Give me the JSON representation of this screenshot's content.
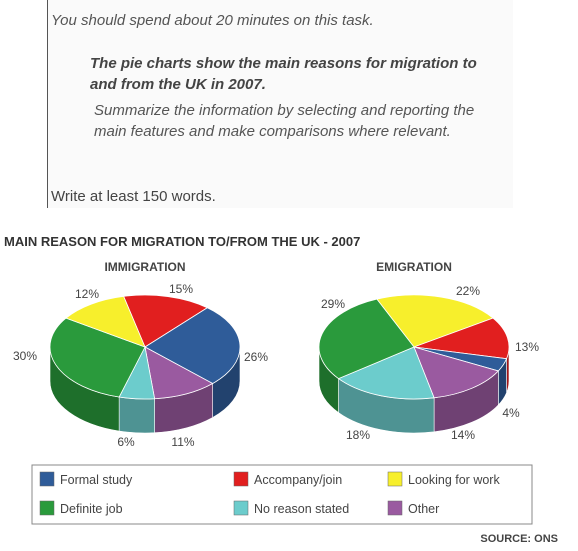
{
  "task": {
    "intro": "You should spend about 20 minutes on this task.",
    "title": "The pie charts show the main reasons for migration to and from the UK in 2007.",
    "instructions": "Summarize the information by selecting and reporting the main features and make comparisons where relevant.",
    "word_count": "Write at least 150 words."
  },
  "chart_data": {
    "type": "pie",
    "title": "MAIN REASON FOR MIGRATION TO/FROM THE UK - 2007",
    "source": "SOURCE: ONS",
    "legend_position": "bottom",
    "categories": [
      "Formal study",
      "Accompany/join",
      "Looking for work",
      "Definite job",
      "No reason stated",
      "Other"
    ],
    "colors": {
      "Formal study": "#2f5c99",
      "Accompany/join": "#e11f1f",
      "Looking for work": "#f7ef2c",
      "Definite job": "#2a9a3c",
      "No reason stated": "#6ccccc",
      "Other": "#9a5aa0"
    },
    "pies": [
      {
        "name": "IMMIGRATION",
        "slices": [
          {
            "label": "Accompany/join",
            "value": 15,
            "text": "15%"
          },
          {
            "label": "Formal study",
            "value": 26,
            "text": "26%"
          },
          {
            "label": "Other",
            "value": 11,
            "text": "11%"
          },
          {
            "label": "No reason stated",
            "value": 6,
            "text": "6%"
          },
          {
            "label": "Definite job",
            "value": 30,
            "text": "30%"
          },
          {
            "label": "Looking for work",
            "value": 12,
            "text": "12%"
          }
        ]
      },
      {
        "name": "EMIGRATION",
        "slices": [
          {
            "label": "Looking for work",
            "value": 22,
            "text": "22%"
          },
          {
            "label": "Accompany/join",
            "value": 13,
            "text": "13%"
          },
          {
            "label": "Formal study",
            "value": 4,
            "text": "4%"
          },
          {
            "label": "Other",
            "value": 14,
            "text": "14%"
          },
          {
            "label": "No reason stated",
            "value": 18,
            "text": "18%"
          },
          {
            "label": "Definite job",
            "value": 29,
            "text": "29%"
          }
        ]
      }
    ]
  }
}
